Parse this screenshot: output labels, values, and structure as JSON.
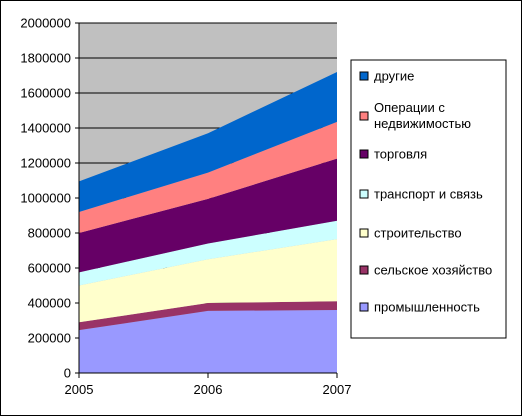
{
  "chart_data": {
    "type": "area",
    "stacked": true,
    "x": [
      "2005",
      "2006",
      "2007"
    ],
    "ylim": [
      0,
      2000000
    ],
    "y_ticks": [
      "0",
      "200000",
      "400000",
      "600000",
      "800000",
      "1000000",
      "1200000",
      "1400000",
      "1600000",
      "1800000",
      "2000000"
    ],
    "grid": true,
    "plot_background": "#c0c0c0",
    "legend_position": "right",
    "series": [
      {
        "name": "промышленность",
        "color": "#9999ff",
        "values": [
          245000,
          355000,
          360000
        ]
      },
      {
        "name": "сельское хозяйство",
        "color": "#993366",
        "values": [
          45000,
          45000,
          50000
        ]
      },
      {
        "name": "строительство",
        "color": "#ffffcc",
        "values": [
          210000,
          250000,
          355000
        ]
      },
      {
        "name": "транспорт и связь",
        "color": "#ccffff",
        "values": [
          75000,
          90000,
          105000
        ]
      },
      {
        "name": "торговля",
        "color": "#660066",
        "values": [
          225000,
          255000,
          355000
        ]
      },
      {
        "name": "Операции с недвижимостью",
        "color": "#ff8080",
        "values": [
          120000,
          150000,
          210000
        ]
      },
      {
        "name": "другие",
        "color": "#0066cc",
        "values": [
          175000,
          225000,
          285000
        ]
      }
    ]
  }
}
